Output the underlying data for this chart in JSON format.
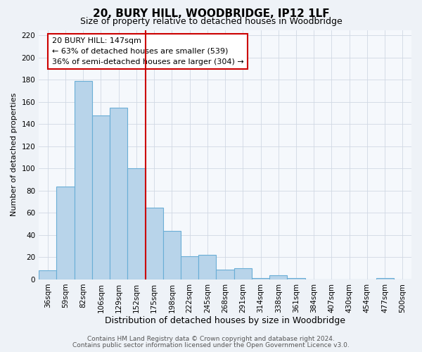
{
  "title": "20, BURY HILL, WOODBRIDGE, IP12 1LF",
  "subtitle": "Size of property relative to detached houses in Woodbridge",
  "xlabel": "Distribution of detached houses by size in Woodbridge",
  "ylabel": "Number of detached properties",
  "bar_labels": [
    "36sqm",
    "59sqm",
    "82sqm",
    "106sqm",
    "129sqm",
    "152sqm",
    "175sqm",
    "198sqm",
    "222sqm",
    "245sqm",
    "268sqm",
    "291sqm",
    "314sqm",
    "338sqm",
    "361sqm",
    "384sqm",
    "407sqm",
    "430sqm",
    "454sqm",
    "477sqm",
    "500sqm"
  ],
  "bar_values": [
    8,
    84,
    179,
    148,
    155,
    100,
    65,
    44,
    21,
    22,
    9,
    10,
    1,
    4,
    1,
    0,
    0,
    0,
    0,
    1,
    0
  ],
  "bar_color": "#b8d4ea",
  "bar_edge_color": "#6aaed6",
  "vline_index": 5,
  "annotation_text": "20 BURY HILL: 147sqm\n← 63% of detached houses are smaller (539)\n36% of semi-detached houses are larger (304) →",
  "annotation_box_facecolor": "#ffffff",
  "annotation_box_edgecolor": "#cc0000",
  "vline_color": "#cc0000",
  "ylim": [
    0,
    225
  ],
  "yticks": [
    0,
    20,
    40,
    60,
    80,
    100,
    120,
    140,
    160,
    180,
    200,
    220
  ],
  "footer_line1": "Contains HM Land Registry data © Crown copyright and database right 2024.",
  "footer_line2": "Contains public sector information licensed under the Open Government Licence v3.0.",
  "background_color": "#eef2f7",
  "plot_background_color": "#f5f8fc",
  "grid_color": "#d0d8e4",
  "title_fontsize": 11,
  "subtitle_fontsize": 9,
  "xlabel_fontsize": 9,
  "ylabel_fontsize": 8,
  "tick_fontsize": 7.5,
  "annotation_fontsize": 8,
  "footer_fontsize": 6.5
}
